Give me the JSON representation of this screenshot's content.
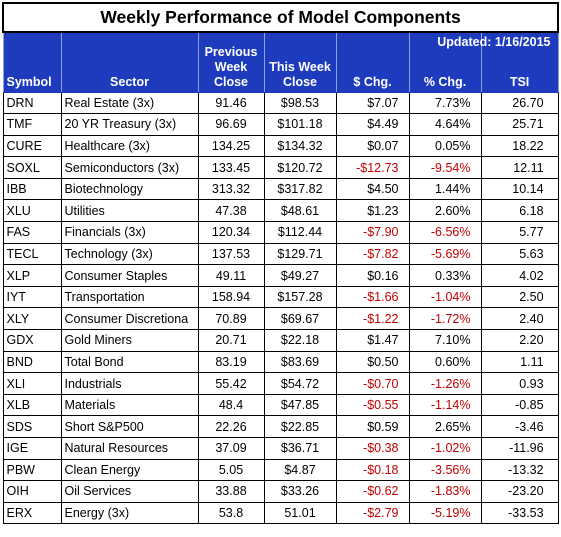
{
  "title": "Weekly Performance of Model Components",
  "updated": "Updated:  1/16/2015",
  "headers": {
    "symbol": "Symbol",
    "sector": "Sector",
    "prev_line1": "Previous",
    "prev_line2": "Week",
    "prev_line3": "Close",
    "this_line1": "This Week",
    "this_line2": "Close",
    "chg": "$ Chg.",
    "pct": "% Chg.",
    "tsi": "TSI"
  },
  "rows": [
    {
      "symbol": "DRN",
      "sector": "Real Estate  (3x)",
      "prev": "91.46",
      "this": "$98.53",
      "chg": "$7.07",
      "pct": "7.73%",
      "tsi": "26.70"
    },
    {
      "symbol": "TMF",
      "sector": "20 YR Treasury  (3x)",
      "prev": "96.69",
      "this": "$101.18",
      "chg": "$4.49",
      "pct": "4.64%",
      "tsi": "25.71"
    },
    {
      "symbol": "CURE",
      "sector": "Healthcare  (3x)",
      "prev": "134.25",
      "this": "$134.32",
      "chg": "$0.07",
      "pct": "0.05%",
      "tsi": "18.22"
    },
    {
      "symbol": "SOXL",
      "sector": "Semiconductors  (3x)",
      "prev": "133.45",
      "this": "$120.72",
      "chg": "-$12.73",
      "pct": "-9.54%",
      "tsi": "12.11"
    },
    {
      "symbol": "IBB",
      "sector": "Biotechnology",
      "prev": "313.32",
      "this": "$317.82",
      "chg": "$4.50",
      "pct": "1.44%",
      "tsi": "10.14"
    },
    {
      "symbol": "XLU",
      "sector": "Utilities",
      "prev": "47.38",
      "this": "$48.61",
      "chg": "$1.23",
      "pct": "2.60%",
      "tsi": "6.18"
    },
    {
      "symbol": "FAS",
      "sector": "Financials  (3x)",
      "prev": "120.34",
      "this": "$112.44",
      "chg": "-$7.90",
      "pct": "-6.56%",
      "tsi": "5.77"
    },
    {
      "symbol": "TECL",
      "sector": "Technology  (3x)",
      "prev": "137.53",
      "this": "$129.71",
      "chg": "-$7.82",
      "pct": "-5.69%",
      "tsi": "5.63"
    },
    {
      "symbol": "XLP",
      "sector": "Consumer Staples",
      "prev": "49.11",
      "this": "$49.27",
      "chg": "$0.16",
      "pct": "0.33%",
      "tsi": "4.02"
    },
    {
      "symbol": "IYT",
      "sector": "Transportation",
      "prev": "158.94",
      "this": "$157.28",
      "chg": "-$1.66",
      "pct": "-1.04%",
      "tsi": "2.50"
    },
    {
      "symbol": "XLY",
      "sector": "Consumer Discretiona",
      "prev": "70.89",
      "this": "$69.67",
      "chg": "-$1.22",
      "pct": "-1.72%",
      "tsi": "2.40"
    },
    {
      "symbol": "GDX",
      "sector": "Gold Miners",
      "prev": "20.71",
      "this": "$22.18",
      "chg": "$1.47",
      "pct": "7.10%",
      "tsi": "2.20"
    },
    {
      "symbol": "BND",
      "sector": "Total Bond",
      "prev": "83.19",
      "this": "$83.69",
      "chg": "$0.50",
      "pct": "0.60%",
      "tsi": "1.11"
    },
    {
      "symbol": "XLI",
      "sector": "Industrials",
      "prev": "55.42",
      "this": "$54.72",
      "chg": "-$0.70",
      "pct": "-1.26%",
      "tsi": "0.93"
    },
    {
      "symbol": "XLB",
      "sector": "Materials",
      "prev": "48.4",
      "this": "$47.85",
      "chg": "-$0.55",
      "pct": "-1.14%",
      "tsi": "-0.85"
    },
    {
      "symbol": "SDS",
      "sector": "Short S&P500",
      "prev": "22.26",
      "this": "$22.85",
      "chg": "$0.59",
      "pct": "2.65%",
      "tsi": "-3.46"
    },
    {
      "symbol": "IGE",
      "sector": "Natural Resources",
      "prev": "37.09",
      "this": "$36.71",
      "chg": "-$0.38",
      "pct": "-1.02%",
      "tsi": "-11.96"
    },
    {
      "symbol": "PBW",
      "sector": "Clean Energy",
      "prev": "5.05",
      "this": "$4.87",
      "chg": "-$0.18",
      "pct": "-3.56%",
      "tsi": "-13.32"
    },
    {
      "symbol": "OIH",
      "sector": "Oil Services",
      "prev": "33.88",
      "this": "$33.26",
      "chg": "-$0.62",
      "pct": "-1.83%",
      "tsi": "-23.20"
    },
    {
      "symbol": "ERX",
      "sector": "Energy (3x)",
      "prev": "53.8",
      "this": "51.01",
      "chg": "-$2.79",
      "pct": "-5.19%",
      "tsi": "-33.53"
    }
  ],
  "colors": {
    "header_bg": "#1f3bbd",
    "header_text": "#ffffff",
    "negative": "#c00000",
    "positive": "#000000"
  }
}
